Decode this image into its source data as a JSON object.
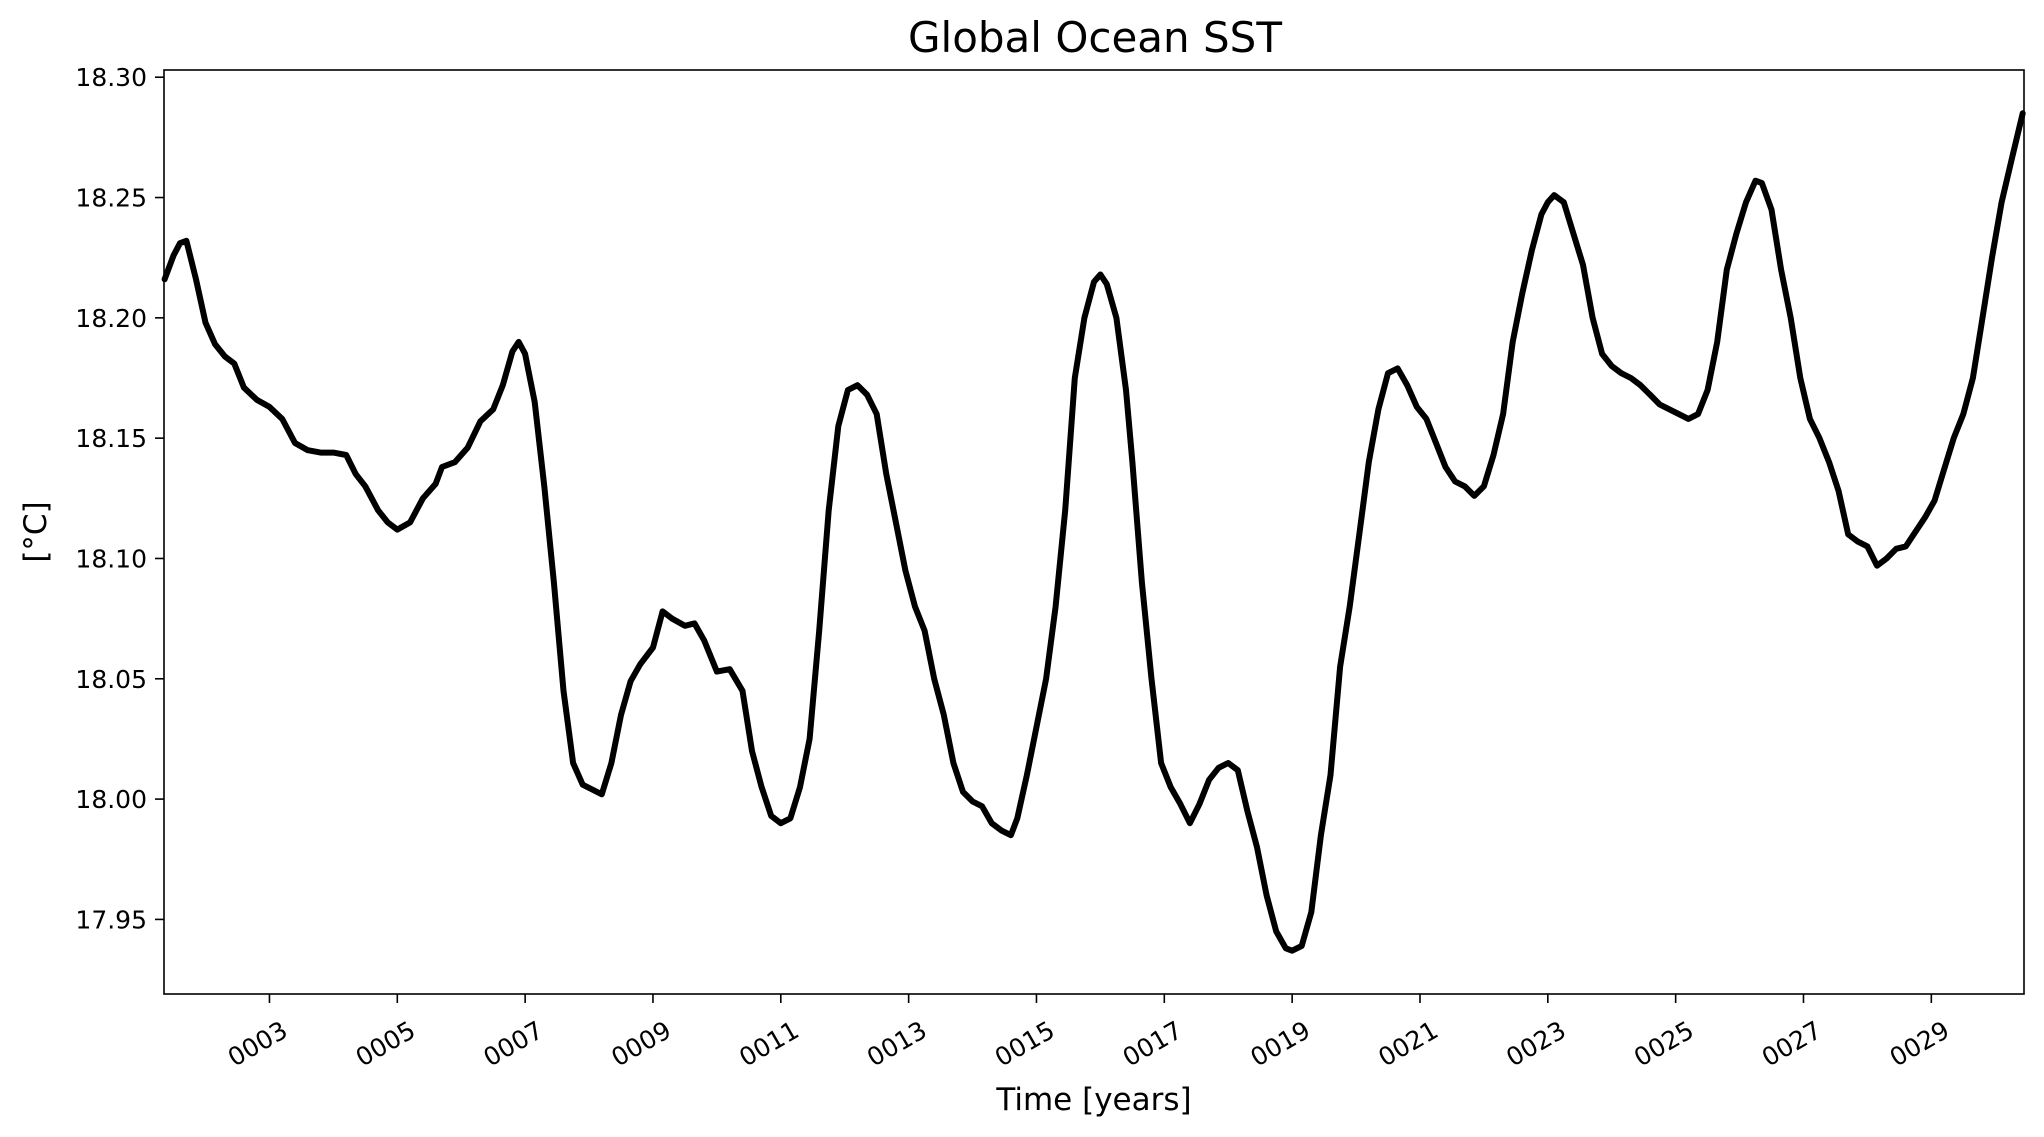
{
  "chart_data": {
    "type": "line",
    "title": "Global Ocean SST",
    "xlabel": "Time [years]",
    "ylabel": "[°C]",
    "xlim": [
      1.35,
      30.45
    ],
    "ylim": [
      17.919,
      18.303
    ],
    "grid": false,
    "x_ticks": [
      3,
      5,
      7,
      9,
      11,
      13,
      15,
      17,
      19,
      21,
      23,
      25,
      27,
      29
    ],
    "x_tick_labels": [
      "0003",
      "0005",
      "0007",
      "0009",
      "0011",
      "0013",
      "0015",
      "0017",
      "0019",
      "0021",
      "0023",
      "0025",
      "0027",
      "0029"
    ],
    "y_ticks": [
      17.95,
      18.0,
      18.05,
      18.1,
      18.15,
      18.2,
      18.25,
      18.3
    ],
    "y_tick_labels": [
      "17.95",
      "18.00",
      "18.05",
      "18.10",
      "18.15",
      "18.20",
      "18.25",
      "18.30"
    ],
    "series": [
      {
        "color": "#000000",
        "x": [
          1.36,
          1.5,
          1.6,
          1.7,
          1.85,
          2.0,
          2.15,
          2.3,
          2.45,
          2.6,
          2.8,
          3.0,
          3.2,
          3.4,
          3.6,
          3.8,
          4.0,
          4.2,
          4.35,
          4.5,
          4.7,
          4.85,
          5.0,
          5.2,
          5.4,
          5.6,
          5.7,
          5.9,
          6.1,
          6.3,
          6.5,
          6.65,
          6.8,
          6.9,
          7.0,
          7.15,
          7.3,
          7.45,
          7.6,
          7.75,
          7.9,
          8.05,
          8.2,
          8.35,
          8.5,
          8.65,
          8.8,
          9.0,
          9.15,
          9.3,
          9.5,
          9.65,
          9.8,
          10.0,
          10.2,
          10.4,
          10.55,
          10.7,
          10.85,
          11.0,
          11.15,
          11.3,
          11.45,
          11.6,
          11.75,
          11.9,
          12.05,
          12.2,
          12.35,
          12.5,
          12.65,
          12.8,
          12.95,
          13.1,
          13.25,
          13.4,
          13.55,
          13.7,
          13.85,
          14.0,
          14.15,
          14.3,
          14.45,
          14.6,
          14.7,
          14.85,
          15.0,
          15.15,
          15.3,
          15.45,
          15.6,
          15.75,
          15.9,
          16.0,
          16.1,
          16.25,
          16.4,
          16.5,
          16.65,
          16.8,
          16.95,
          17.1,
          17.25,
          17.4,
          17.55,
          17.7,
          17.85,
          18.0,
          18.15,
          18.3,
          18.45,
          18.6,
          18.75,
          18.9,
          19.0,
          19.15,
          19.3,
          19.45,
          19.6,
          19.75,
          19.9,
          20.05,
          20.2,
          20.35,
          20.5,
          20.65,
          20.8,
          20.95,
          21.1,
          21.25,
          21.4,
          21.55,
          21.7,
          21.85,
          22.0,
          22.15,
          22.3,
          22.45,
          22.6,
          22.75,
          22.9,
          23.0,
          23.1,
          23.25,
          23.4,
          23.55,
          23.7,
          23.85,
          24.0,
          24.15,
          24.3,
          24.45,
          24.6,
          24.75,
          24.9,
          25.05,
          25.2,
          25.35,
          25.5,
          25.65,
          25.8,
          25.95,
          26.1,
          26.25,
          26.35,
          26.5,
          26.65,
          26.8,
          26.95,
          27.1,
          27.25,
          27.4,
          27.55,
          27.7,
          27.85,
          28.0,
          28.15,
          28.3,
          28.45,
          28.6,
          28.75,
          28.9,
          29.05,
          29.2,
          29.35,
          29.5,
          29.65,
          29.8,
          29.95,
          30.1,
          30.25,
          30.43
        ],
        "y": [
          18.216,
          18.226,
          18.231,
          18.232,
          18.216,
          18.198,
          18.189,
          18.184,
          18.181,
          18.171,
          18.166,
          18.163,
          18.158,
          18.148,
          18.145,
          18.144,
          18.144,
          18.143,
          18.135,
          18.13,
          18.12,
          18.115,
          18.112,
          18.115,
          18.125,
          18.131,
          18.138,
          18.14,
          18.146,
          18.157,
          18.162,
          18.172,
          18.186,
          18.19,
          18.185,
          18.165,
          18.13,
          18.09,
          18.045,
          18.015,
          18.006,
          18.004,
          18.002,
          18.015,
          18.035,
          18.049,
          18.056,
          18.063,
          18.078,
          18.075,
          18.072,
          18.073,
          18.066,
          18.053,
          18.054,
          18.045,
          18.02,
          18.005,
          17.993,
          17.99,
          17.992,
          18.005,
          18.025,
          18.07,
          18.12,
          18.155,
          18.17,
          18.172,
          18.168,
          18.16,
          18.135,
          18.115,
          18.095,
          18.08,
          18.07,
          18.05,
          18.035,
          18.015,
          18.003,
          17.999,
          17.997,
          17.99,
          17.987,
          17.985,
          17.992,
          18.01,
          18.03,
          18.05,
          18.08,
          18.12,
          18.175,
          18.2,
          18.215,
          18.218,
          18.214,
          18.2,
          18.17,
          18.14,
          18.09,
          18.05,
          18.015,
          18.005,
          17.998,
          17.99,
          17.998,
          18.008,
          18.013,
          18.015,
          18.012,
          17.995,
          17.98,
          17.96,
          17.945,
          17.938,
          17.937,
          17.939,
          17.953,
          17.985,
          18.01,
          18.055,
          18.08,
          18.11,
          18.14,
          18.162,
          18.177,
          18.179,
          18.172,
          18.163,
          18.158,
          18.148,
          18.138,
          18.132,
          18.13,
          18.126,
          18.13,
          18.143,
          18.16,
          18.19,
          18.21,
          18.228,
          18.243,
          18.248,
          18.251,
          18.248,
          18.235,
          18.222,
          18.2,
          18.185,
          18.18,
          18.177,
          18.175,
          18.172,
          18.168,
          18.164,
          18.162,
          18.16,
          18.158,
          18.16,
          18.17,
          18.19,
          18.22,
          18.235,
          18.248,
          18.257,
          18.256,
          18.245,
          18.22,
          18.2,
          18.175,
          18.158,
          18.15,
          18.14,
          18.128,
          18.11,
          18.107,
          18.105,
          18.097,
          18.1,
          18.104,
          18.105,
          18.111,
          18.117,
          18.124,
          18.137,
          18.15,
          18.16,
          18.175,
          18.2,
          18.225,
          18.248,
          18.265,
          18.285
        ]
      }
    ]
  }
}
